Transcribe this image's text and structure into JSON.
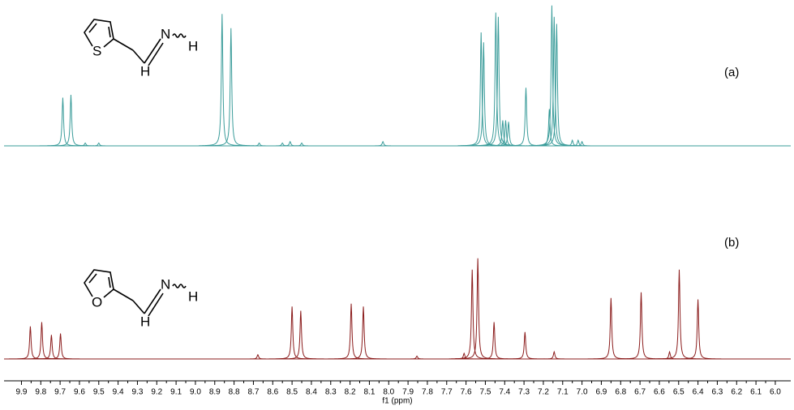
{
  "chart_data": {
    "type": "nmr",
    "xlabel": "f1 (ppm)",
    "xlim": [
      9.99,
      5.92
    ],
    "xticks": [
      9.9,
      9.8,
      9.7,
      9.6,
      9.5,
      9.4,
      9.3,
      9.2,
      9.1,
      {
        "value": 9,
        "label": "9.0"
      },
      8.9,
      8.8,
      8.7,
      8.6,
      8.5,
      8.4,
      8.3,
      8.2,
      8.1,
      {
        "value": 8,
        "label": "8.0"
      },
      7.9,
      7.8,
      7.7,
      7.6,
      7.5,
      7.4,
      7.3,
      7.2,
      7.1,
      {
        "value": 7,
        "label": "7.0"
      },
      6.9,
      6.8,
      6.7,
      6.6,
      6.5,
      6.4,
      6.3,
      6.2,
      6.1,
      {
        "value": 6,
        "label": "6.0"
      }
    ],
    "ylim": [
      0,
      100
    ],
    "series": [
      {
        "name": "(a)",
        "color": "#3a9c9a",
        "x": [
          9.686,
          9.644,
          9.57,
          9.5,
          8.862,
          8.816,
          8.67,
          8.55,
          8.51,
          8.45,
          8.03,
          7.522,
          7.509,
          7.446,
          7.433,
          7.41,
          7.395,
          7.38,
          7.29,
          7.169,
          7.156,
          7.144,
          7.131,
          7.05,
          7.02,
          7.0
        ],
        "values": [
          34,
          36,
          2,
          2,
          93,
          83,
          2,
          2,
          3,
          2,
          3,
          80,
          73,
          94,
          91,
          18,
          18,
          17,
          41,
          26,
          99,
          91,
          86,
          4,
          4,
          3
        ]
      },
      {
        "name": "(b)",
        "color": "#8b1c1c",
        "x": [
          9.854,
          9.795,
          9.745,
          9.698,
          8.677,
          8.5,
          8.455,
          8.194,
          8.131,
          7.854,
          7.61,
          7.568,
          7.539,
          7.455,
          7.295,
          7.144,
          6.85,
          6.694,
          6.547,
          6.497,
          6.4
        ],
        "values": [
          23,
          26,
          17,
          18,
          3,
          37,
          34,
          39,
          37,
          2,
          4,
          63,
          71,
          26,
          19,
          5,
          43,
          47,
          5,
          63,
          42
        ]
      }
    ]
  },
  "structures": [
    {
      "ring_atom": "S",
      "imine_atom": "N",
      "n_h": "H",
      "c_h": "H"
    },
    {
      "ring_atom": "O",
      "imine_atom": "N",
      "n_h": "H",
      "c_h": "H"
    }
  ]
}
